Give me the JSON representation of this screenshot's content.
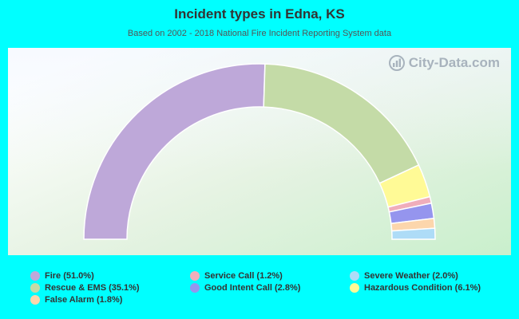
{
  "chart_data": {
    "type": "pie",
    "title": "Incident types in Edna, KS",
    "subtitle": "Based on 2002 - 2018 National Fire Incident Reporting System data",
    "series": [
      {
        "name": "Fire",
        "value": 51.0,
        "label": "Fire (51.0%)",
        "color": "#bea8d9"
      },
      {
        "name": "Rescue & EMS",
        "value": 35.1,
        "label": "Rescue & EMS (35.1%)",
        "color": "#c4dba7"
      },
      {
        "name": "Hazardous Condition",
        "value": 6.1,
        "label": "Hazardous Condition (6.1%)",
        "color": "#fffa96"
      },
      {
        "name": "Service Call",
        "value": 1.2,
        "label": "Service Call (1.2%)",
        "color": "#f0aebb"
      },
      {
        "name": "Good Intent Call",
        "value": 2.8,
        "label": "Good Intent Call (2.8%)",
        "color": "#9595ee"
      },
      {
        "name": "False Alarm",
        "value": 1.8,
        "label": "False Alarm (1.8%)",
        "color": "#fcd6ac"
      },
      {
        "name": "Severe Weather",
        "value": 2.0,
        "label": "Severe Weather (2.0%)",
        "color": "#aedcf7"
      }
    ],
    "legend_order": [
      0,
      3,
      6,
      1,
      4,
      2,
      5
    ],
    "legend_position": "bottom",
    "style": "half-donut"
  },
  "watermark": {
    "text": "City-Data.com",
    "icon": "city-data-logo-icon"
  }
}
